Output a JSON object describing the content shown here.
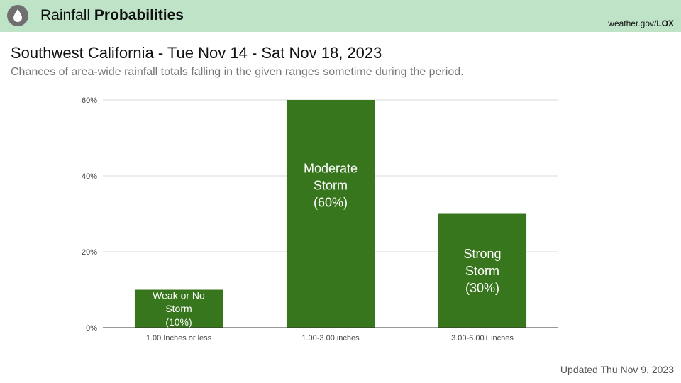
{
  "header": {
    "title_prefix": "Rainfall",
    "title_bold": "Probabilities",
    "source_prefix": "weather.gov/",
    "source_bold": "LOX",
    "icon": "water-drop-icon"
  },
  "colors": {
    "header_bg": "#bfe3c6",
    "bar": "#38761d",
    "gridline": "#d9d9d9",
    "icon_bg": "#6f6f6f"
  },
  "title": "Southwest California - Tue Nov 14 - Sat Nov 18, 2023",
  "subtitle": "Chances of area-wide rainfall totals falling in the given ranges sometime during the period.",
  "footer": {
    "updated": "Updated Thu Nov 9, 2023"
  },
  "chart_data": {
    "type": "bar",
    "categories": [
      "1.00 Inches or less",
      "1.00-3.00 inches",
      "3.00-6.00+ inches"
    ],
    "values": [
      10,
      60,
      30
    ],
    "bar_labels": [
      [
        "Weak or No",
        "Storm",
        "(10%)"
      ],
      [
        "Moderate",
        "Storm",
        "(60%)"
      ],
      [
        "Strong",
        "Storm",
        "(30%)"
      ]
    ],
    "ylim": [
      0,
      60
    ],
    "yticks": [
      0,
      20,
      40,
      60
    ],
    "ytick_labels": [
      "0%",
      "20%",
      "40%",
      "60%"
    ],
    "grid": true,
    "legend": false,
    "xlabel": "",
    "ylabel": ""
  }
}
